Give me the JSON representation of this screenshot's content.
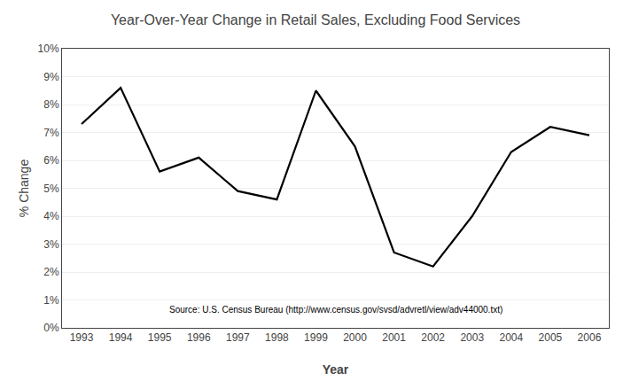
{
  "chart_data": {
    "type": "line",
    "title": "Year-Over-Year Change in Retail Sales, Excluding Food Services",
    "x_label": "Year",
    "y_label": "% Change",
    "x": [
      1993,
      1994,
      1995,
      1996,
      1997,
      1998,
      1999,
      2000,
      2001,
      2002,
      2003,
      2004,
      2005,
      2006
    ],
    "values": [
      7.3,
      8.6,
      5.6,
      6.1,
      4.9,
      4.6,
      8.5,
      6.5,
      2.7,
      2.2,
      4.0,
      6.3,
      7.2,
      6.9
    ],
    "color": "#000000",
    "xlim": [
      1992.5,
      2006.5
    ],
    "xticks": [
      1993,
      1994,
      1995,
      1996,
      1997,
      1998,
      1999,
      2000,
      2001,
      2002,
      2003,
      2004,
      2005,
      2006
    ],
    "ylim": [
      0,
      10
    ],
    "yticks": [
      {
        "value": 0,
        "label": "0%"
      },
      {
        "value": 1,
        "label": "1%"
      },
      {
        "value": 2,
        "label": "2%"
      },
      {
        "value": 3,
        "label": "3%"
      },
      {
        "value": 4,
        "label": "4%"
      },
      {
        "value": 5,
        "label": "5%"
      },
      {
        "value": 6,
        "label": "6%"
      },
      {
        "value": 7,
        "label": "7%"
      },
      {
        "value": 8,
        "label": "8%"
      },
      {
        "value": 9,
        "label": "9%"
      },
      {
        "value": 10,
        "label": "10%"
      }
    ],
    "grid": true,
    "annotation": "Source: U.S. Census Bureau (http://www.census.gov/svsd/advretl/view/adv44000.txt)"
  }
}
